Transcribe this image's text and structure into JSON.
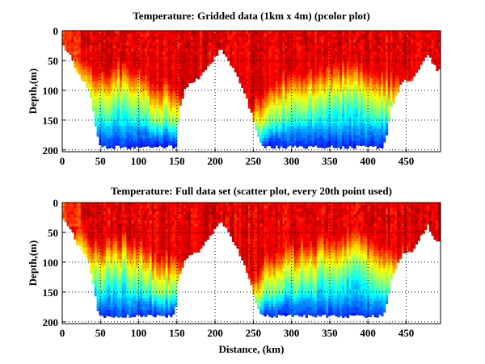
{
  "chart_data": [
    {
      "type": "heatmap",
      "title": "Temperature: Gridded data (1km x 4m) (pcolor plot)",
      "xlabel": "",
      "ylabel": "Depth,(m)",
      "xlim": [
        0,
        495
      ],
      "ylim": [
        0,
        203
      ],
      "y_reversed": true,
      "xticks": [
        0,
        50,
        100,
        150,
        200,
        250,
        300,
        350,
        400,
        450
      ],
      "yticks": [
        0,
        50,
        100,
        150,
        200
      ],
      "grid": true,
      "colormap": "jet",
      "data_bottom_depth": {
        "distance": [
          0,
          10,
          20,
          30,
          35,
          40,
          45,
          50,
          148,
          150,
          152,
          160,
          170,
          180,
          190,
          200,
          207,
          215,
          230,
          240,
          250,
          260,
          265,
          420,
          425,
          430,
          440,
          445,
          460,
          470,
          478,
          485,
          490,
          495
        ],
        "depth": [
          25,
          40,
          70,
          90,
          100,
          130,
          170,
          195,
          195,
          190,
          140,
          100,
          85,
          80,
          60,
          45,
          28,
          45,
          80,
          110,
          150,
          190,
          195,
          195,
          170,
          130,
          100,
          85,
          80,
          55,
          38,
          55,
          65,
          65
        ]
      },
      "thermocline_depth": {
        "distance": [
          0,
          20,
          40,
          60,
          80,
          100,
          120,
          140,
          150,
          250,
          270,
          300,
          330,
          360,
          380,
          400,
          420,
          440,
          495
        ],
        "depth": [
          65,
          70,
          100,
          95,
          85,
          100,
          115,
          120,
          130,
          150,
          120,
          100,
          95,
          90,
          80,
          90,
          105,
          110,
          110
        ]
      }
    },
    {
      "type": "heatmap",
      "title": "Temperature: Full data set (scatter plot, every 20th point used)",
      "xlabel": "Distance, (km)",
      "ylabel": "Depth,(m)",
      "xlim": [
        0,
        495
      ],
      "ylim": [
        0,
        203
      ],
      "y_reversed": true,
      "xticks": [
        0,
        50,
        100,
        150,
        200,
        250,
        300,
        350,
        400,
        450
      ],
      "yticks": [
        0,
        50,
        100,
        150,
        200
      ],
      "grid": true,
      "colormap": "jet",
      "data_bottom_depth": {
        "distance": [
          0,
          10,
          20,
          30,
          35,
          40,
          45,
          48,
          145,
          148,
          150,
          160,
          170,
          180,
          190,
          200,
          207,
          215,
          230,
          240,
          250,
          258,
          262,
          420,
          425,
          430,
          440,
          445,
          460,
          470,
          478,
          485,
          490,
          495
        ],
        "depth": [
          25,
          40,
          70,
          90,
          100,
          130,
          170,
          190,
          190,
          185,
          140,
          100,
          85,
          80,
          60,
          45,
          28,
          45,
          80,
          110,
          150,
          185,
          190,
          190,
          170,
          130,
          100,
          85,
          80,
          55,
          38,
          55,
          65,
          65
        ]
      },
      "thermocline_depth": {
        "distance": [
          0,
          20,
          40,
          60,
          80,
          100,
          120,
          140,
          150,
          250,
          270,
          300,
          330,
          360,
          380,
          400,
          420,
          440,
          495
        ],
        "depth": [
          65,
          70,
          100,
          95,
          85,
          100,
          115,
          120,
          130,
          150,
          120,
          100,
          95,
          90,
          80,
          90,
          105,
          110,
          110
        ]
      }
    }
  ]
}
